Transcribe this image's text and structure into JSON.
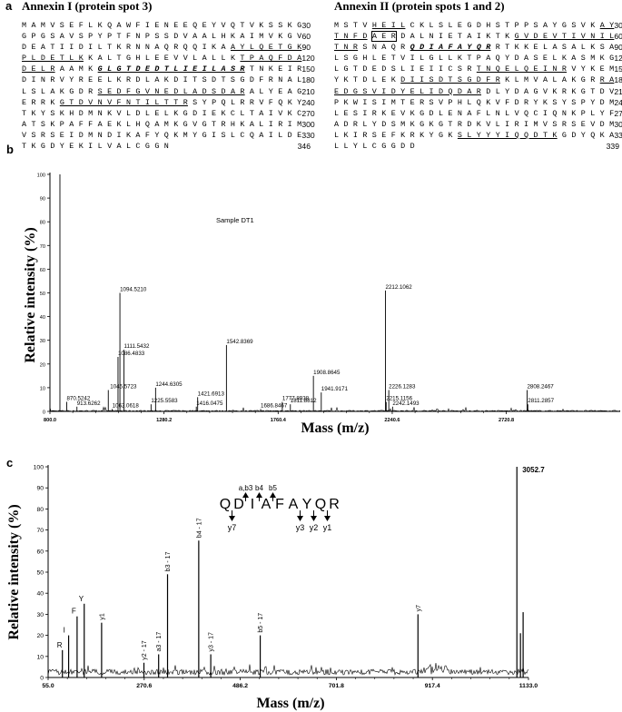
{
  "panel_a": {
    "letter": "a",
    "annexin1": {
      "title": "Annexin I (protein spot 3)",
      "lines": [
        {
          "segs": [
            {
              "t": "MAMVSEFLKQAWFIENEEQEYVQTVKSSKG",
              "s": ""
            }
          ],
          "num": "30"
        },
        {
          "segs": [
            {
              "t": "GPGSAVSPYPTFNPSSDVAALHKAIMVKGV",
              "s": ""
            }
          ],
          "num": "60"
        },
        {
          "segs": [
            {
              "t": "DEATIIDILTKRNNAQRQQIKA",
              "s": ""
            },
            {
              "t": "AYLQETGK",
              "s": "u"
            }
          ],
          "num": "90"
        },
        {
          "segs": [
            {
              "t": "PLDETLK",
              "s": "u"
            },
            {
              "t": "KALTGHLEEVVLALLK",
              "s": ""
            },
            {
              "t": "TPAQFDA",
              "s": "u"
            }
          ],
          "num": "120"
        },
        {
          "segs": [
            {
              "t": "DELR",
              "s": "u"
            },
            {
              "t": "AAMK",
              "s": ""
            },
            {
              "t": "GLGTDEDTLIEILASR",
              "s": "bi"
            },
            {
              "t": "TNKEIR",
              "s": ""
            }
          ],
          "num": "150"
        },
        {
          "segs": [
            {
              "t": "DINRVYREELKRDLAKDITSDTSGDFRNAL",
              "s": ""
            }
          ],
          "num": "180"
        },
        {
          "segs": [
            {
              "t": "LSLAKGDR",
              "s": ""
            },
            {
              "t": "SEDFGVNEDLADSDAR",
              "s": "u"
            },
            {
              "t": "ALYEAG",
              "s": ""
            }
          ],
          "num": "210"
        },
        {
          "segs": [
            {
              "t": "ERRK",
              "s": ""
            },
            {
              "t": "GTDVNVFNTILTTR",
              "s": "u"
            },
            {
              "t": "SYPQLRRVFQKY",
              "s": ""
            }
          ],
          "num": "240"
        },
        {
          "segs": [
            {
              "t": "TKYSKHDMNKVLDLELKGDIEKCLTAIVKC",
              "s": ""
            }
          ],
          "num": "270"
        },
        {
          "segs": [
            {
              "t": "ATSKPAFFAEKLHQAMKGVGTRHKALIRIM",
              "s": ""
            }
          ],
          "num": "300"
        },
        {
          "segs": [
            {
              "t": "VSRSEIDMNDIKAFYQKMYGISLCQAILDE",
              "s": ""
            }
          ],
          "num": "330"
        },
        {
          "segs": [
            {
              "t": "TKGDYEKILVALCGGN",
              "s": ""
            }
          ],
          "num": "346"
        }
      ]
    },
    "annexin2": {
      "title": "Annexin II (protein spots 1 and 2)",
      "lines": [
        {
          "segs": [
            {
              "t": "MSTV",
              "s": ""
            },
            {
              "t": "HEIL",
              "s": "u"
            },
            {
              "t": "CKLSLEGDHSTPPSAYGSVK",
              "s": ""
            },
            {
              "t": "AY",
              "s": "u"
            }
          ],
          "num": "30"
        },
        {
          "segs": [
            {
              "t": "TNFD",
              "s": "u"
            },
            {
              "t": "AER",
              "s": "boxed"
            },
            {
              "t": "DALNIETAIKTK",
              "s": ""
            },
            {
              "t": "GVDEVTIVNIL",
              "s": "u"
            }
          ],
          "num": "60"
        },
        {
          "segs": [
            {
              "t": "TNR",
              "s": "u"
            },
            {
              "t": "SNAQR",
              "s": ""
            },
            {
              "t": "QDIAFAYQR",
              "s": "bi"
            },
            {
              "t": "RTKKELASALKSA",
              "s": ""
            }
          ],
          "num": "90"
        },
        {
          "segs": [
            {
              "t": "LSGHLETVILGLLKTPAQYDASELKASMKG",
              "s": ""
            }
          ],
          "num": "120"
        },
        {
          "segs": [
            {
              "t": "LGTDEDSLIEIICSR",
              "s": ""
            },
            {
              "t": "TNQELQEINR",
              "s": "u"
            },
            {
              "t": "VYKEM",
              "s": ""
            }
          ],
          "num": "150"
        },
        {
          "segs": [
            {
              "t": "YKTDLEK",
              "s": ""
            },
            {
              "t": "DIISDTSGDFR",
              "s": "u"
            },
            {
              "t": "KLMVALAKGR",
              "s": ""
            },
            {
              "t": "RA",
              "s": "u"
            }
          ],
          "num": "180"
        },
        {
          "segs": [
            {
              "t": "EDGSVIDYELIDQDAR",
              "s": "u"
            },
            {
              "t": "DLYDAGVKRKGTDV",
              "s": ""
            }
          ],
          "num": "210"
        },
        {
          "segs": [
            {
              "t": "PKWISIMTERSVPHLQKVFDRYKSYSPYDM",
              "s": ""
            }
          ],
          "num": "240"
        },
        {
          "segs": [
            {
              "t": "LESIRKEVKGDLENAFLNLVQCIQNKPLYF",
              "s": ""
            }
          ],
          "num": "270"
        },
        {
          "segs": [
            {
              "t": "ADRLYDSMKGKGTRDKVLIRIMVSRSEVDM",
              "s": ""
            }
          ],
          "num": "300"
        },
        {
          "segs": [
            {
              "t": "LKIRSEFKRKYGK",
              "s": ""
            },
            {
              "t": "SLYYYIQQDTK",
              "s": "u"
            },
            {
              "t": "GDYQKA",
              "s": ""
            }
          ],
          "num": "330"
        },
        {
          "segs": [
            {
              "t": "LLYLCGGDD",
              "s": ""
            }
          ],
          "num": "339"
        }
      ]
    }
  },
  "panel_b": {
    "letter": "b",
    "sample_label": "Sample DT1",
    "ylabel": "Relative intensity (%)",
    "xlabel": "Mass (m/z)"
  },
  "panel_c": {
    "letter": "c",
    "ylabel": "Relative intensity (%)",
    "xlabel": "Mass (m/z)",
    "sequence_letters": [
      "Q",
      "D",
      "I",
      "A",
      "F",
      "A",
      "Y",
      "Q",
      "R"
    ],
    "b_ions_label": [
      "a,b3",
      "b4",
      "b5"
    ],
    "y_ions_label": [
      "y7",
      "y3",
      "y2",
      "y1"
    ]
  },
  "chart_data": [
    {
      "type": "bar",
      "title": "",
      "annotation": "Sample DT1",
      "xlabel": "Mass (m/z)",
      "ylabel": "Relative intensity (%)",
      "xlim": [
        800.0,
        3200.0
      ],
      "ylim": [
        0,
        100
      ],
      "xticks": [
        "800.0",
        "1280.2",
        "1760.4",
        "2240.6",
        "2720.8"
      ],
      "xtick_values": [
        800.0,
        1280.2,
        1760.4,
        2240.6,
        2720.8
      ],
      "yticks": [
        0,
        10,
        20,
        30,
        40,
        50,
        60,
        70,
        80,
        90,
        100
      ],
      "peaks": [
        {
          "x": 842.0,
          "y": 100,
          "label": ""
        },
        {
          "x": 870.5242,
          "y": 4,
          "label": "870.5242"
        },
        {
          "x": 913.6262,
          "y": 2,
          "label": "913.6262"
        },
        {
          "x": 1045.5723,
          "y": 9,
          "label": "1045.5723"
        },
        {
          "x": 1062.0618,
          "y": 1,
          "label": "1062.0618"
        },
        {
          "x": 1086.4833,
          "y": 23,
          "label": "1086.4833"
        },
        {
          "x": 1094.521,
          "y": 50,
          "label": "1094.5210"
        },
        {
          "x": 1111.5432,
          "y": 26,
          "label": "1111.5432"
        },
        {
          "x": 1225.5583,
          "y": 3,
          "label": "1225.5583"
        },
        {
          "x": 1244.6305,
          "y": 10,
          "label": "1244.6305"
        },
        {
          "x": 1416.0475,
          "y": 2,
          "label": "1416.0475"
        },
        {
          "x": 1421.6913,
          "y": 6,
          "label": "1421.6913"
        },
        {
          "x": 1542.8369,
          "y": 28,
          "label": "1542.8369"
        },
        {
          "x": 1686.8467,
          "y": 1,
          "label": "1686.8467"
        },
        {
          "x": 1777.8938,
          "y": 4,
          "label": "1777.8938"
        },
        {
          "x": 1811.8812,
          "y": 3,
          "label": "1811.8812"
        },
        {
          "x": 1908.8645,
          "y": 15,
          "label": "1908.8645"
        },
        {
          "x": 1941.9171,
          "y": 8,
          "label": "1941.9171"
        },
        {
          "x": 2212.1062,
          "y": 51,
          "label": "2212.1062"
        },
        {
          "x": 2215.1156,
          "y": 4,
          "label": "2215.1156"
        },
        {
          "x": 2226.1283,
          "y": 9,
          "label": "2226.1283"
        },
        {
          "x": 2242.1493,
          "y": 2,
          "label": "2242.1493"
        },
        {
          "x": 2808.2467,
          "y": 9,
          "label": "2808.2467"
        },
        {
          "x": 2811.2857,
          "y": 3,
          "label": "2811.2857"
        }
      ]
    },
    {
      "type": "bar",
      "title": "",
      "xlabel": "Mass (m/z)",
      "ylabel": "Relative intensity (%)",
      "xlim": [
        55.0,
        1133.0
      ],
      "ylim": [
        0,
        100
      ],
      "xticks": [
        "55.0",
        "270.6",
        "486.2",
        "701.8",
        "917.4",
        "1133.0"
      ],
      "xtick_values": [
        55.0,
        270.6,
        486.2,
        701.8,
        917.4,
        1133.0
      ],
      "yticks": [
        0,
        10,
        20,
        30,
        40,
        50,
        60,
        70,
        80,
        90,
        100
      ],
      "peaks": [
        {
          "x": 87.0,
          "y": 13,
          "label": "R"
        },
        {
          "x": 101.0,
          "y": 20,
          "label": "I"
        },
        {
          "x": 120.0,
          "y": 29,
          "label": "F"
        },
        {
          "x": 136.0,
          "y": 35,
          "label": "Y"
        },
        {
          "x": 175.0,
          "y": 26,
          "label": "y1"
        },
        {
          "x": 270.0,
          "y": 7,
          "label": "y2 - 17"
        },
        {
          "x": 303.0,
          "y": 11,
          "label": "a3 - 17"
        },
        {
          "x": 323.0,
          "y": 49,
          "label": "b3 - 17"
        },
        {
          "x": 393.0,
          "y": 65,
          "label": "b4 - 17"
        },
        {
          "x": 420.0,
          "y": 11,
          "label": "y3 - 17"
        },
        {
          "x": 531.0,
          "y": 20,
          "label": "b5 - 17"
        },
        {
          "x": 885.0,
          "y": 30,
          "label": "y7"
        },
        {
          "x": 1107.0,
          "y": 100,
          "label": "3052.7"
        },
        {
          "x": 1115.0,
          "y": 21,
          "label": ""
        },
        {
          "x": 1121.0,
          "y": 31,
          "label": ""
        }
      ]
    }
  ]
}
